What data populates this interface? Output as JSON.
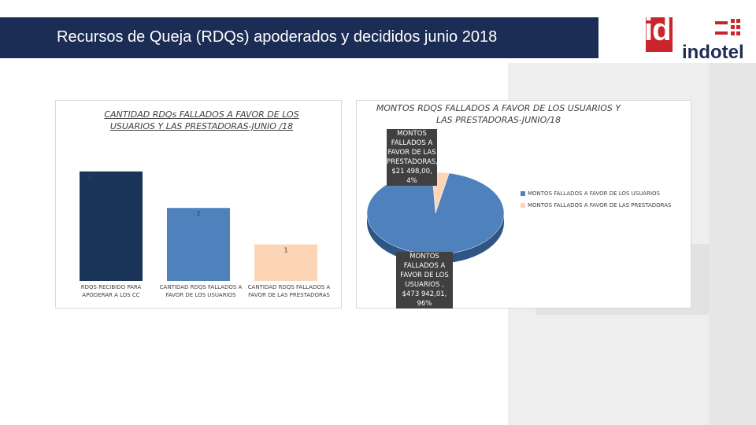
{
  "header": {
    "title": "Recursos de Queja (RDQs) apoderados y decididos junio 2018"
  },
  "logo": {
    "mark": "id",
    "name": "indotel"
  },
  "colors": {
    "header": "#1b2d55",
    "brand_red": "#c9252c",
    "bar1": "#1b3459",
    "bar2": "#4f81bd",
    "bar3": "#fbd5b5",
    "pie_users": "#4f81bd",
    "pie_providers": "#fbd5b5"
  },
  "chart_data": [
    {
      "type": "bar",
      "title": "CANTIDAD RDQs FALLADOS A FAVOR DE LOS USUARIOS Y LAS PRESTADORAS-JUNIO /18",
      "categories": [
        "RDQS RECIBIDO PARA APODERAR A LOS CC",
        "CANTIDAD RDQS FALLADOS A FAVOR DE LOS USUARIOS",
        "CANTIDAD RDQS FALLADOS A FAVOR DE LAS PRESTADORAS"
      ],
      "values": [
        3,
        2,
        1
      ],
      "data_labels": [
        "3",
        "2",
        "1"
      ],
      "ylim": [
        0,
        3.6
      ]
    },
    {
      "type": "pie",
      "title": "MONTOS RDQS FALLADOS A FAVOR DE LOS USUARIOS Y LAS PRESTADORAS-JUNIO/18",
      "slices": [
        {
          "name": "MONTOS FALLADOS A FAVOR DE LOS USUARIOS",
          "value": 96,
          "label": "MONTOS FALLADOS A FAVOR DE LOS USUARIOS , $473 942,01, 96%"
        },
        {
          "name": "MONTOS FALLADOS A FAVOR DE LAS PRESTADORAS",
          "value": 4,
          "label": "MONTOS FALLADOS A FAVOR DE LAS PRESTADORAS, $21 498,00, 4%"
        }
      ],
      "legend": [
        "MONTOS FALLADOS A FAVOR DE LOS USUARIOS",
        "MONTOS FALLADOS A FAVOR DE LAS PRESTADORAS"
      ],
      "legend_position": "right"
    }
  ]
}
